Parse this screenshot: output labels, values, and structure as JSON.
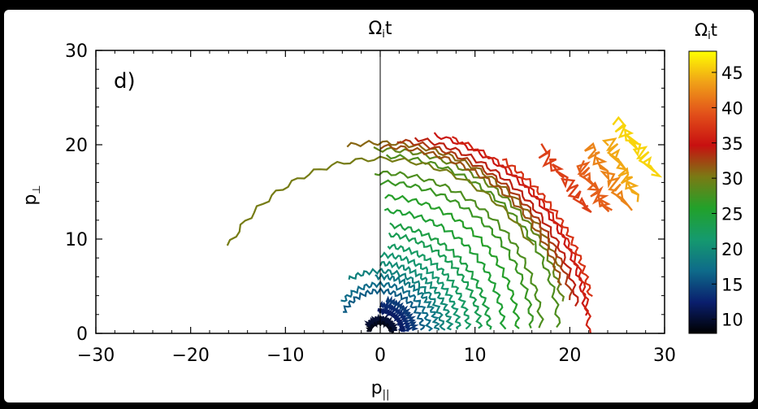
{
  "chart_data": {
    "type": "scatter",
    "panel_label": "d)",
    "top_label": "Ω_i t",
    "xlabel": "p_||",
    "ylabel": "p_⊥",
    "xlim": [
      -30,
      30
    ],
    "ylim": [
      0,
      30
    ],
    "xticks": [
      -30,
      -20,
      -10,
      0,
      10,
      20,
      30
    ],
    "yticks": [
      0,
      10,
      20,
      30
    ],
    "vertical_line_x": 0,
    "grid": false,
    "colorbar": {
      "label": "Ω_i t",
      "range": [
        8,
        48
      ],
      "ticks": [
        10,
        15,
        20,
        25,
        30,
        35,
        40,
        45
      ],
      "colormap": [
        "#000000",
        "#0a1f6e",
        "#0e6b8a",
        "#159a6e",
        "#22a12a",
        "#7a7a14",
        "#c81010",
        "#e2501a",
        "#f0a018",
        "#ffff00"
      ]
    },
    "arcs": [
      {
        "t": 9,
        "r": 1.2,
        "a0": 5,
        "a1": 170
      },
      {
        "t": 10,
        "r": 1.6,
        "a0": 10,
        "a1": 150
      },
      {
        "t": 12,
        "r": 2.4,
        "a0": 5,
        "a1": 95
      },
      {
        "t": 13,
        "r": 3.0,
        "a0": 5,
        "a1": 90
      },
      {
        "t": 14,
        "r": 3.6,
        "a0": 5,
        "a1": 80
      },
      {
        "t": 16,
        "r": 4.5,
        "a0": 5,
        "a1": 150
      },
      {
        "t": 17,
        "r": 5.2,
        "a0": 3,
        "a1": 140
      },
      {
        "t": 18,
        "r": 6.0,
        "a0": 3,
        "a1": 95
      },
      {
        "t": 19,
        "r": 6.6,
        "a0": 3,
        "a1": 120
      },
      {
        "t": 20,
        "r": 7.4,
        "a0": 3,
        "a1": 90
      },
      {
        "t": 21,
        "r": 8.3,
        "a0": 3,
        "a1": 90
      },
      {
        "t": 22,
        "r": 9.3,
        "a0": 3,
        "a1": 85
      },
      {
        "t": 23,
        "r": 10.5,
        "a0": 3,
        "a1": 85
      },
      {
        "t": 24,
        "r": 11.5,
        "a0": 2,
        "a1": 85
      },
      {
        "t": 25,
        "r": 13.0,
        "a0": 2,
        "a1": 88
      },
      {
        "t": 26,
        "r": 14.5,
        "a0": 2,
        "a1": 88
      },
      {
        "t": 27,
        "r": 16.0,
        "a0": 2,
        "a1": 90
      },
      {
        "t": 28,
        "r": 17.0,
        "a0": 2,
        "a1": 92
      },
      {
        "t": 28,
        "r": 18.8,
        "a0": 2,
        "a1": 88
      },
      {
        "t": 29,
        "r": 19.5,
        "a0": 10,
        "a1": 92
      },
      {
        "t": 30,
        "r": 18.5,
        "a0": 30,
        "a1": 150
      },
      {
        "t": 31,
        "r": 20.2,
        "a0": 20,
        "a1": 100
      },
      {
        "t": 32,
        "r": 19.8,
        "a0": 15,
        "a1": 90
      },
      {
        "t": 33,
        "r": 20.5,
        "a0": 10,
        "a1": 85
      },
      {
        "t": 34,
        "r": 21.0,
        "a0": 8,
        "a1": 80
      },
      {
        "t": 35,
        "r": 21.8,
        "a0": 5,
        "a1": 75
      },
      {
        "t": 36,
        "r": 22.0,
        "a0": 0,
        "a1": 70
      },
      {
        "t": 37,
        "r": 22.5,
        "a0": 10,
        "a1": 55
      }
    ],
    "late_streaks": [
      {
        "t": 38,
        "x0": 17,
        "y0": 19.5,
        "x1": 22,
        "y1": 13
      },
      {
        "t": 40,
        "x0": 21,
        "y0": 18,
        "x1": 24,
        "y1": 13
      },
      {
        "t": 42,
        "x0": 22,
        "y0": 20,
        "x1": 26,
        "y1": 13.5
      },
      {
        "t": 44,
        "x0": 24,
        "y0": 20.5,
        "x1": 27,
        "y1": 14.5
      },
      {
        "t": 46,
        "x0": 25,
        "y0": 22.5,
        "x1": 29,
        "y1": 17
      }
    ]
  }
}
